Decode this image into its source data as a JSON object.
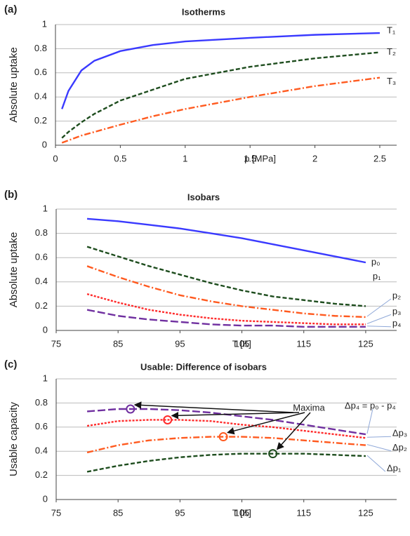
{
  "chart_data": [
    {
      "type": "line",
      "panel": "(a)",
      "title": "Isotherms",
      "x_label": "p [MPa]",
      "y_label": "Absolute uptake",
      "x": [
        0,
        0.05,
        0.1,
        0.2,
        0.3,
        0.5,
        0.75,
        1,
        1.5,
        2,
        2.5
      ],
      "xlim": [
        0,
        2.63
      ],
      "xticks": [
        0,
        0.5,
        1,
        1.5,
        2,
        2.5
      ],
      "ylim": [
        0,
        1
      ],
      "yticks": [
        0,
        0.2,
        0.4,
        0.6,
        0.8,
        1
      ],
      "grid": true,
      "series": [
        {
          "name": "T₁",
          "color": "#3a3aff",
          "style": "solid",
          "values": [
            0,
            0.3,
            0.45,
            0.62,
            0.7,
            0.78,
            0.83,
            0.86,
            0.89,
            0.915,
            0.93
          ]
        },
        {
          "name": "T₂",
          "color": "#1e4d1e",
          "style": "dashed",
          "values": [
            0,
            0.06,
            0.11,
            0.19,
            0.26,
            0.37,
            0.46,
            0.55,
            0.65,
            0.72,
            0.77
          ]
        },
        {
          "name": "T₃",
          "color": "#ff5a1f",
          "style": "dashdot",
          "values": [
            0,
            0.02,
            0.04,
            0.08,
            0.11,
            0.17,
            0.24,
            0.3,
            0.4,
            0.49,
            0.56
          ]
        }
      ]
    },
    {
      "type": "line",
      "panel": "(b)",
      "title": "Isobars",
      "x_label": "T [K]",
      "y_label": "Absolute uptake",
      "x": [
        77,
        80,
        85,
        90,
        95,
        100,
        105,
        110,
        115,
        120,
        125
      ],
      "xlim": [
        75,
        130
      ],
      "xticks": [
        75,
        85,
        95,
        105,
        115,
        125
      ],
      "ylim": [
        0,
        1
      ],
      "yticks": [
        0,
        0.2,
        0.4,
        0.6,
        0.8,
        1
      ],
      "grid": true,
      "series": [
        {
          "name": "p₀",
          "color": "#3a3aff",
          "style": "solid",
          "values": [
            0.93,
            0.92,
            0.9,
            0.87,
            0.84,
            0.8,
            0.76,
            0.71,
            0.66,
            0.61,
            0.56
          ]
        },
        {
          "name": "p₁",
          "color": "#1e4d1e",
          "style": "dashed",
          "values": [
            0.74,
            0.69,
            0.61,
            0.53,
            0.46,
            0.39,
            0.33,
            0.28,
            0.25,
            0.22,
            0.2
          ]
        },
        {
          "name": "p₂",
          "color": "#ff5a1f",
          "style": "dashdot",
          "values": [
            0.59,
            0.53,
            0.44,
            0.36,
            0.29,
            0.24,
            0.2,
            0.17,
            0.14,
            0.12,
            0.11
          ]
        },
        {
          "name": "p₃",
          "color": "#ff2a2a",
          "style": "dotted",
          "values": [
            0.36,
            0.3,
            0.23,
            0.17,
            0.13,
            0.1,
            0.08,
            0.07,
            0.06,
            0.05,
            0.05
          ]
        },
        {
          "name": "p₄",
          "color": "#7030a0",
          "style": "longdash",
          "values": [
            0.22,
            0.17,
            0.12,
            0.09,
            0.07,
            0.05,
            0.04,
            0.04,
            0.03,
            0.03,
            0.03
          ]
        }
      ]
    },
    {
      "type": "line",
      "panel": "(c)",
      "title": "Usable: Difference of isobars",
      "x_label": "T [K]",
      "y_label": "Usable capacity",
      "x": [
        77,
        80,
        85,
        90,
        95,
        100,
        105,
        110,
        115,
        120,
        125
      ],
      "xlim": [
        75,
        130
      ],
      "xticks": [
        75,
        85,
        95,
        105,
        115,
        125
      ],
      "ylim": [
        0,
        1
      ],
      "yticks": [
        0,
        0.2,
        0.4,
        0.6,
        0.8,
        1
      ],
      "grid": true,
      "series": [
        {
          "name": "Δp₁",
          "color": "#1e4d1e",
          "style": "dashed",
          "values": [
            0.19,
            0.23,
            0.28,
            0.32,
            0.35,
            0.37,
            0.38,
            0.38,
            0.38,
            0.37,
            0.36
          ]
        },
        {
          "name": "Δp₂",
          "color": "#ff5a1f",
          "style": "dashdot",
          "values": [
            0.34,
            0.39,
            0.45,
            0.49,
            0.51,
            0.52,
            0.52,
            0.51,
            0.49,
            0.47,
            0.45
          ]
        },
        {
          "name": "Δp₃",
          "color": "#ff2a2a",
          "style": "dotted",
          "values": [
            0.57,
            0.61,
            0.65,
            0.66,
            0.66,
            0.65,
            0.62,
            0.6,
            0.57,
            0.54,
            0.51
          ]
        },
        {
          "name": "Δp₄ = p₀ - p₄",
          "color": "#7030a0",
          "style": "longdash",
          "values": [
            0.71,
            0.73,
            0.75,
            0.75,
            0.74,
            0.72,
            0.69,
            0.66,
            0.62,
            0.58,
            0.54
          ]
        }
      ],
      "maxima": {
        "label": "Maxima",
        "x": [
          87,
          93,
          102,
          110
        ],
        "y": [
          0.75,
          0.66,
          0.52,
          0.38
        ],
        "colors": [
          "#7030a0",
          "#ff2a2a",
          "#ff5a1f",
          "#1e4d1e"
        ]
      }
    }
  ]
}
